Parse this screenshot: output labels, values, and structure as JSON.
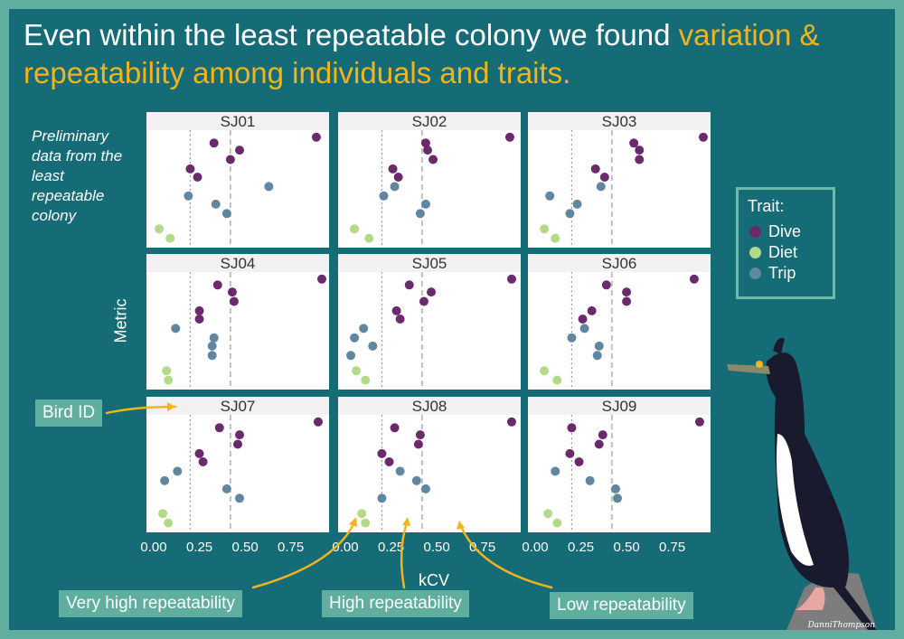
{
  "headline": {
    "part1": "Even within the least repeatable colony we found ",
    "part2": "variation &",
    "part3": "repeatability among individuals and traits."
  },
  "note": "Preliminary data from the least repeatable colony",
  "legend": {
    "title": "Trait:",
    "items": [
      {
        "label": "Dive",
        "color": "#6b2a6c"
      },
      {
        "label": "Diet",
        "color": "#b5d98a"
      },
      {
        "label": "Trip",
        "color": "#5f87a0"
      }
    ]
  },
  "callouts": {
    "bird_id": "Bird ID",
    "very_high": "Very high repeatability",
    "high": "High repeatability",
    "low": "Low repeatability"
  },
  "signature": "DanniThompson",
  "chart_data": {
    "type": "scatter",
    "xlabel": "kCV",
    "ylabel": "Metric",
    "xlim": [
      0,
      0.92
    ],
    "xticks": [
      "0.00",
      "0.25",
      "0.50",
      "0.75"
    ],
    "reference_lines": {
      "dotted": 0.2,
      "dashed": 0.42
    },
    "legend_position": "right",
    "series": [
      {
        "name": "Dive"
      },
      {
        "name": "Diet"
      },
      {
        "name": "Trip"
      }
    ],
    "panels": [
      {
        "id": "SJ01",
        "points": [
          {
            "trait": "Dive",
            "x": 0.89
          },
          {
            "trait": "Dive",
            "x": 0.33
          },
          {
            "trait": "Dive",
            "x": 0.47
          },
          {
            "trait": "Dive",
            "x": 0.42
          },
          {
            "trait": "Dive",
            "x": 0.2
          },
          {
            "trait": "Dive",
            "x": 0.24
          },
          {
            "trait": "Trip",
            "x": 0.63
          },
          {
            "trait": "Trip",
            "x": 0.19
          },
          {
            "trait": "Trip",
            "x": 0.34
          },
          {
            "trait": "Trip",
            "x": 0.4
          },
          {
            "trait": "Diet",
            "x": 0.03
          },
          {
            "trait": "Diet",
            "x": 0.09
          }
        ]
      },
      {
        "id": "SJ02",
        "points": [
          {
            "trait": "Dive",
            "x": 0.9
          },
          {
            "trait": "Dive",
            "x": 0.44
          },
          {
            "trait": "Dive",
            "x": 0.45
          },
          {
            "trait": "Dive",
            "x": 0.48
          },
          {
            "trait": "Dive",
            "x": 0.26
          },
          {
            "trait": "Dive",
            "x": 0.29
          },
          {
            "trait": "Trip",
            "x": 0.27
          },
          {
            "trait": "Trip",
            "x": 0.21
          },
          {
            "trait": "Trip",
            "x": 0.44
          },
          {
            "trait": "Trip",
            "x": 0.41
          },
          {
            "trait": "Diet",
            "x": 0.05
          },
          {
            "trait": "Diet",
            "x": 0.13
          }
        ]
      },
      {
        "id": "SJ03",
        "points": [
          {
            "trait": "Dive",
            "x": 0.92
          },
          {
            "trait": "Dive",
            "x": 0.54
          },
          {
            "trait": "Dive",
            "x": 0.57
          },
          {
            "trait": "Dive",
            "x": 0.57
          },
          {
            "trait": "Dive",
            "x": 0.33
          },
          {
            "trait": "Dive",
            "x": 0.38
          },
          {
            "trait": "Trip",
            "x": 0.36
          },
          {
            "trait": "Trip",
            "x": 0.08
          },
          {
            "trait": "Trip",
            "x": 0.23
          },
          {
            "trait": "Trip",
            "x": 0.19
          },
          {
            "trait": "Diet",
            "x": 0.05
          },
          {
            "trait": "Diet",
            "x": 0.11
          }
        ]
      },
      {
        "id": "SJ04",
        "points": [
          {
            "trait": "Dive",
            "x": 0.92
          },
          {
            "trait": "Dive",
            "x": 0.35
          },
          {
            "trait": "Dive",
            "x": 0.43
          },
          {
            "trait": "Dive",
            "x": 0.44
          },
          {
            "trait": "Dive",
            "x": 0.25
          },
          {
            "trait": "Dive",
            "x": 0.25
          },
          {
            "trait": "Trip",
            "x": 0.12
          },
          {
            "trait": "Trip",
            "x": 0.33
          },
          {
            "trait": "Trip",
            "x": 0.32
          },
          {
            "trait": "Trip",
            "x": 0.32
          },
          {
            "trait": "Diet",
            "x": 0.07
          },
          {
            "trait": "Diet",
            "x": 0.08
          }
        ]
      },
      {
        "id": "SJ05",
        "points": [
          {
            "trait": "Dive",
            "x": 0.91
          },
          {
            "trait": "Dive",
            "x": 0.35
          },
          {
            "trait": "Dive",
            "x": 0.47
          },
          {
            "trait": "Dive",
            "x": 0.43
          },
          {
            "trait": "Dive",
            "x": 0.28
          },
          {
            "trait": "Dive",
            "x": 0.3
          },
          {
            "trait": "Trip",
            "x": 0.1
          },
          {
            "trait": "Trip",
            "x": 0.05
          },
          {
            "trait": "Trip",
            "x": 0.15
          },
          {
            "trait": "Trip",
            "x": 0.03
          },
          {
            "trait": "Diet",
            "x": 0.06
          },
          {
            "trait": "Diet",
            "x": 0.11
          }
        ]
      },
      {
        "id": "SJ06",
        "points": [
          {
            "trait": "Dive",
            "x": 0.87
          },
          {
            "trait": "Dive",
            "x": 0.39
          },
          {
            "trait": "Dive",
            "x": 0.5
          },
          {
            "trait": "Dive",
            "x": 0.5
          },
          {
            "trait": "Dive",
            "x": 0.31
          },
          {
            "trait": "Dive",
            "x": 0.26
          },
          {
            "trait": "Trip",
            "x": 0.27
          },
          {
            "trait": "Trip",
            "x": 0.2
          },
          {
            "trait": "Trip",
            "x": 0.35
          },
          {
            "trait": "Trip",
            "x": 0.34
          },
          {
            "trait": "Diet",
            "x": 0.05
          },
          {
            "trait": "Diet",
            "x": 0.12
          }
        ]
      },
      {
        "id": "SJ07",
        "points": [
          {
            "trait": "Dive",
            "x": 0.9
          },
          {
            "trait": "Dive",
            "x": 0.36
          },
          {
            "trait": "Dive",
            "x": 0.47
          },
          {
            "trait": "Dive",
            "x": 0.46
          },
          {
            "trait": "Dive",
            "x": 0.25
          },
          {
            "trait": "Dive",
            "x": 0.27
          },
          {
            "trait": "Trip",
            "x": 0.13
          },
          {
            "trait": "Trip",
            "x": 0.06
          },
          {
            "trait": "Trip",
            "x": 0.4
          },
          {
            "trait": "Trip",
            "x": 0.47
          },
          {
            "trait": "Diet",
            "x": 0.05
          },
          {
            "trait": "Diet",
            "x": 0.08
          }
        ]
      },
      {
        "id": "SJ08",
        "points": [
          {
            "trait": "Dive",
            "x": 0.91
          },
          {
            "trait": "Dive",
            "x": 0.27
          },
          {
            "trait": "Dive",
            "x": 0.41
          },
          {
            "trait": "Dive",
            "x": 0.4
          },
          {
            "trait": "Dive",
            "x": 0.2
          },
          {
            "trait": "Dive",
            "x": 0.24
          },
          {
            "trait": "Trip",
            "x": 0.3
          },
          {
            "trait": "Trip",
            "x": 0.39
          },
          {
            "trait": "Trip",
            "x": 0.44
          },
          {
            "trait": "Trip",
            "x": 0.2
          },
          {
            "trait": "Diet",
            "x": 0.09
          },
          {
            "trait": "Diet",
            "x": 0.11
          }
        ]
      },
      {
        "id": "SJ09",
        "points": [
          {
            "trait": "Dive",
            "x": 0.9
          },
          {
            "trait": "Dive",
            "x": 0.2
          },
          {
            "trait": "Dive",
            "x": 0.37
          },
          {
            "trait": "Dive",
            "x": 0.35
          },
          {
            "trait": "Dive",
            "x": 0.19
          },
          {
            "trait": "Dive",
            "x": 0.24
          },
          {
            "trait": "Trip",
            "x": 0.11
          },
          {
            "trait": "Trip",
            "x": 0.3
          },
          {
            "trait": "Trip",
            "x": 0.44
          },
          {
            "trait": "Trip",
            "x": 0.45
          },
          {
            "trait": "Diet",
            "x": 0.07
          },
          {
            "trait": "Diet",
            "x": 0.12
          }
        ]
      }
    ]
  }
}
